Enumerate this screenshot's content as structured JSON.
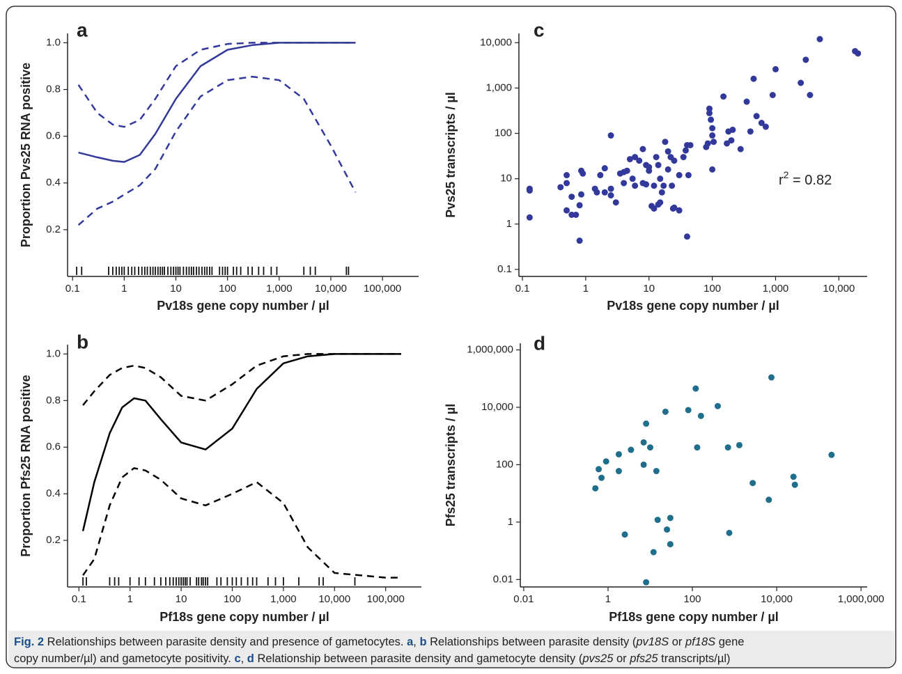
{
  "chart_data": [
    {
      "type": "line",
      "panel": "a",
      "xlabel": "Pv18s gene copy number / µl",
      "ylabel": "Proportion Pvs25 RNA positive",
      "xscale": "log",
      "xlim": [
        0.08,
        500000
      ],
      "ylim": [
        0,
        1.04
      ],
      "xticks": [
        0.1,
        1,
        10,
        100,
        {
          "value": 1000,
          "label": "1,000"
        },
        {
          "value": 10000,
          "label": "10,000"
        },
        {
          "value": 100000,
          "label": "100,000"
        }
      ],
      "yticks": [
        0.2,
        0.4,
        0.6,
        0.8,
        {
          "value": 1,
          "label": "1.0"
        }
      ],
      "x": [
        0.13,
        0.3,
        0.6,
        1,
        2,
        4,
        10,
        30,
        100,
        300,
        1000,
        3000,
        10000,
        30000
      ],
      "series": [
        {
          "color": "#33399a",
          "style": "solid",
          "values": [
            0.53,
            0.51,
            0.495,
            0.49,
            0.52,
            0.61,
            0.76,
            0.9,
            0.97,
            0.99,
            1.0,
            1.0,
            1.0,
            1.0
          ]
        },
        {
          "color": "#33399a",
          "style": "dashed",
          "values": [
            0.82,
            0.7,
            0.65,
            0.64,
            0.67,
            0.76,
            0.9,
            0.97,
            0.995,
            1.0,
            1.0,
            1.0,
            1.0,
            1.0
          ]
        },
        {
          "color": "#33399a",
          "style": "dashed",
          "values": [
            0.22,
            0.29,
            0.32,
            0.35,
            0.39,
            0.46,
            0.62,
            0.77,
            0.84,
            0.855,
            0.84,
            0.76,
            0.56,
            0.36
          ]
        }
      ],
      "rug": [
        0.12,
        0.15,
        0.5,
        0.6,
        0.7,
        0.8,
        0.9,
        1,
        1.2,
        1.4,
        1.6,
        1.9,
        2.2,
        2.5,
        2.8,
        3.2,
        3.6,
        4,
        4.5,
        5,
        5.5,
        6,
        7,
        8,
        9,
        10,
        11,
        12,
        14,
        16,
        18,
        20,
        22,
        25,
        28,
        32,
        36,
        40,
        45,
        50,
        70,
        80,
        90,
        100,
        130,
        150,
        180,
        250,
        300,
        400,
        500,
        700,
        900,
        3000,
        4000,
        5000,
        20000,
        22000
      ]
    },
    {
      "type": "line",
      "panel": "b",
      "xlabel": "Pf18s gene copy number / µl",
      "ylabel": "Proportion Pfs25 RNA positive",
      "xscale": "log",
      "xlim": [
        0.06,
        500000
      ],
      "ylim": [
        0,
        1.04
      ],
      "xticks": [
        0.1,
        1,
        10,
        100,
        {
          "value": 1000,
          "label": "1,000"
        },
        {
          "value": 10000,
          "label": "10,000"
        },
        {
          "value": 100000,
          "label": "100,000"
        }
      ],
      "yticks": [
        0.2,
        0.4,
        0.6,
        0.8,
        {
          "value": 1,
          "label": "1.0"
        }
      ],
      "x": [
        0.12,
        0.2,
        0.4,
        0.7,
        1.2,
        2,
        4,
        10,
        30,
        100,
        300,
        1000,
        3000,
        10000,
        100000,
        200000
      ],
      "series": [
        {
          "color": "#000000",
          "style": "solid",
          "values": [
            0.24,
            0.45,
            0.66,
            0.77,
            0.81,
            0.8,
            0.72,
            0.62,
            0.59,
            0.68,
            0.85,
            0.96,
            0.99,
            1.0,
            1.0,
            1.0
          ]
        },
        {
          "color": "#000000",
          "style": "dashed",
          "values": [
            0.78,
            0.84,
            0.91,
            0.94,
            0.95,
            0.94,
            0.9,
            0.82,
            0.8,
            0.87,
            0.95,
            0.99,
            1.0,
            1.0,
            1.0,
            1.0
          ]
        },
        {
          "color": "#000000",
          "style": "dashed",
          "values": [
            0.05,
            0.12,
            0.35,
            0.47,
            0.51,
            0.5,
            0.46,
            0.38,
            0.35,
            0.4,
            0.45,
            0.36,
            0.17,
            0.06,
            0.04,
            0.04
          ]
        }
      ],
      "rug": [
        0.12,
        0.14,
        0.4,
        0.5,
        0.6,
        1,
        1.5,
        2,
        3,
        4,
        5,
        6,
        7,
        8,
        9,
        10,
        11,
        12,
        13,
        15,
        20,
        22,
        25,
        27,
        30,
        33,
        50,
        60,
        80,
        100,
        120,
        150,
        200,
        250,
        300,
        500,
        700,
        1000,
        2000,
        5000,
        6000,
        25000
      ]
    },
    {
      "type": "scatter",
      "panel": "c",
      "xlabel": "Pv18s gene copy number / µl",
      "ylabel": "Pvs25 transcripts / µl",
      "xscale": "log",
      "yscale": "log",
      "xlim": [
        0.088,
        28000
      ],
      "ylim": [
        0.07,
        16000
      ],
      "color": "#33399a",
      "xticks": [
        0.1,
        1,
        10,
        100,
        {
          "value": 1000,
          "label": "1,000"
        },
        {
          "value": 10000,
          "label": "10,000"
        }
      ],
      "yticks": [
        0.1,
        1,
        10,
        100,
        {
          "value": 1000,
          "label": "1,000"
        },
        {
          "value": 10000,
          "label": "10,000"
        }
      ],
      "annotation": {
        "base": "r",
        "superscript": "2",
        "text": " = 0.82"
      },
      "x": [
        0.13,
        0.13,
        0.13,
        0.4,
        0.5,
        0.5,
        0.5,
        0.6,
        0.7,
        0.6,
        0.8,
        0.8,
        0.85,
        0.9,
        0.85,
        1.4,
        1.5,
        1.7,
        2,
        2,
        2.5,
        2.5,
        2.5,
        3,
        3.5,
        4,
        4,
        4.5,
        5,
        5.5,
        6,
        6,
        7,
        8,
        8,
        9,
        9,
        10,
        10,
        11,
        12,
        12,
        13,
        14,
        14,
        15,
        15,
        16,
        17,
        18,
        20,
        20,
        22,
        23,
        24,
        25,
        25,
        30,
        30,
        35,
        38,
        40,
        40,
        42,
        45,
        80,
        85,
        90,
        90,
        95,
        100,
        100,
        105,
        100,
        150,
        170,
        180,
        200,
        210,
        280,
        350,
        400,
        450,
        500,
        600,
        700,
        900,
        1000,
        2500,
        3000,
        3500,
        5000,
        18000,
        20000
      ],
      "values": [
        6,
        5.5,
        1.4,
        6.5,
        12,
        8,
        2,
        1.6,
        1.6,
        4,
        2.6,
        0.43,
        15,
        13,
        4.5,
        6,
        5,
        12,
        17,
        5,
        4.3,
        90,
        6,
        3,
        13,
        8,
        14,
        15,
        27,
        10,
        7,
        30,
        25,
        45,
        8,
        7.5,
        20,
        15,
        18,
        2.5,
        2.2,
        7,
        30,
        20,
        2.7,
        3,
        10,
        5,
        7,
        65,
        40,
        16,
        30,
        7,
        2.2,
        2.3,
        25,
        2,
        12,
        30,
        42,
        55,
        0.53,
        12,
        55,
        50,
        60,
        350,
        280,
        200,
        130,
        90,
        65,
        16,
        650,
        60,
        110,
        70,
        120,
        45,
        500,
        110,
        1600,
        240,
        170,
        140,
        700,
        2600,
        1300,
        4200,
        700,
        12000,
        6500,
        5800
      ]
    },
    {
      "type": "scatter",
      "panel": "d",
      "xlabel": "Pf18s gene copy number / µl",
      "ylabel": "Pfs25 transcripts / µl",
      "xscale": "log",
      "yscale": "log",
      "xlim": [
        0.0083,
        1400000
      ],
      "ylim": [
        0.0055,
        1700000
      ],
      "color": "#1f6e8c",
      "xticks": [
        0.01,
        1,
        100,
        {
          "value": 10000,
          "label": "10,000"
        },
        {
          "value": 1000000,
          "label": "1,000,000"
        }
      ],
      "yticks": [
        0.01,
        1,
        100,
        {
          "value": 10000,
          "label": "10,000"
        },
        {
          "value": 1000000,
          "label": "1,000,000"
        }
      ],
      "x": [
        0.5,
        0.6,
        0.7,
        0.9,
        1.8,
        1.8,
        2.5,
        3.5,
        7,
        7,
        8,
        8,
        10,
        12,
        14,
        15,
        23,
        25,
        30,
        30,
        80,
        120,
        130,
        160,
        400,
        700,
        750,
        1300,
        2700,
        6500,
        7500,
        25000,
        27000,
        200000
      ],
      "values": [
        15,
        70,
        35,
        130,
        60,
        230,
        0.37,
        330,
        100,
        600,
        2700,
        0.008,
        400,
        0.09,
        60,
        1.2,
        7000,
        0.55,
        1.4,
        0.17,
        8000,
        45000,
        400,
        5000,
        11000,
        400,
        0.42,
        480,
        23,
        6,
        110000,
        38,
        20,
        220
      ]
    }
  ],
  "caption": [
    [
      {
        "text": "Fig. 2",
        "style": "bold"
      },
      {
        "text": " Relationships between parasite density and presence of gametocytes. ",
        "style": "normal"
      },
      {
        "text": "a",
        "style": "bold"
      },
      {
        "text": ", ",
        "style": "normal"
      },
      {
        "text": "b",
        "style": "bold"
      },
      {
        "text": " Relationships between parasite density (",
        "style": "normal"
      },
      {
        "text": "pv18S",
        "style": "italic"
      },
      {
        "text": " or ",
        "style": "normal"
      },
      {
        "text": "pf18S",
        "style": "italic"
      },
      {
        "text": " gene",
        "style": "normal"
      }
    ],
    [
      {
        "text": "copy number/µl) and gametocyte positivity. ",
        "style": "normal"
      },
      {
        "text": "c",
        "style": "bold"
      },
      {
        "text": ", ",
        "style": "normal"
      },
      {
        "text": "d",
        "style": "bold"
      },
      {
        "text": " Relationship between parasite density and gametocyte density (",
        "style": "normal"
      },
      {
        "text": "pvs25",
        "style": "italic"
      },
      {
        "text": " or ",
        "style": "normal"
      },
      {
        "text": "pfs25",
        "style": "italic"
      },
      {
        "text": " transcripts/µl)",
        "style": "normal"
      }
    ]
  ]
}
